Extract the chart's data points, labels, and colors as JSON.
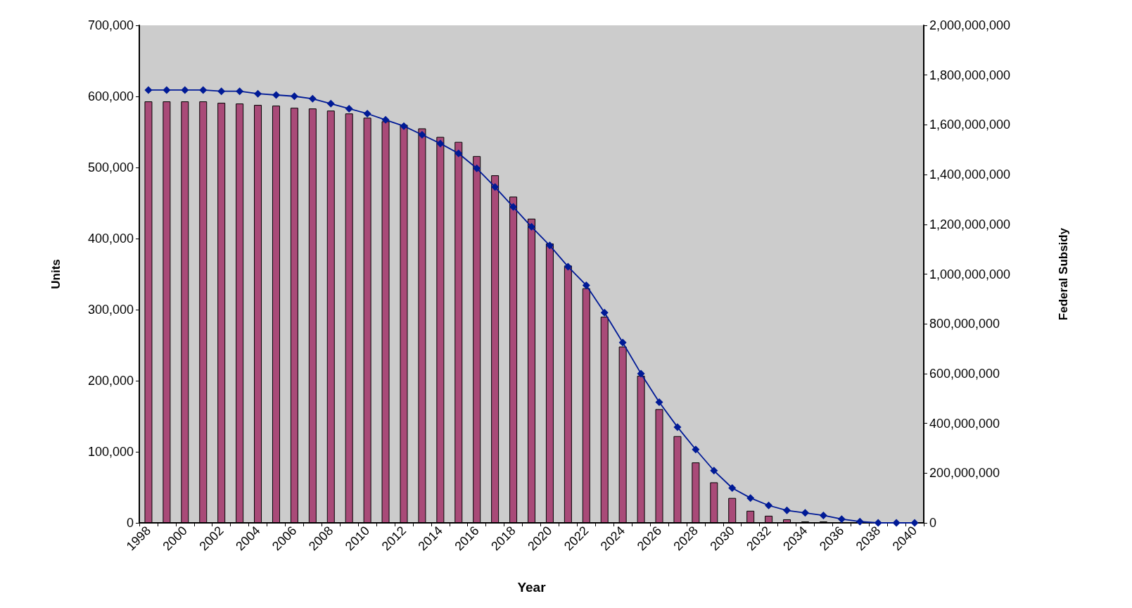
{
  "chart_data": {
    "type": "bar",
    "xlabel": "Year",
    "ylabel": "Units",
    "y2label": "Federal Subsidy",
    "categories": [
      "1998",
      null,
      "2000",
      null,
      "2002",
      null,
      "2004",
      null,
      "2006",
      null,
      "2008",
      null,
      "2010",
      null,
      "2012",
      null,
      "2014",
      null,
      "2016",
      null,
      "2018",
      null,
      "2020",
      null,
      "2022",
      null,
      "2024",
      null,
      "2026",
      null,
      "2028",
      null,
      "2030",
      null,
      "2032",
      null,
      "2034",
      null,
      "2036",
      null,
      "2038",
      null,
      "2040"
    ],
    "series": [
      {
        "color": "#a94a78",
        "values": [
          593000,
          593000,
          593000,
          593000,
          591000,
          590000,
          588000,
          587000,
          584000,
          583000,
          580000,
          576000,
          570000,
          565000,
          560000,
          555000,
          543000,
          536000,
          516000,
          489000,
          459000,
          428000,
          393000,
          362000,
          330000,
          290000,
          248000,
          207000,
          160000,
          122000,
          85000,
          57000,
          35000,
          17000,
          10000,
          5000,
          2000,
          2000,
          0,
          0,
          0,
          0,
          0
        ]
      },
      {
        "type": "line",
        "axis": "y2",
        "color": "#001a96",
        "marker": "diamond",
        "values": [
          1740000000,
          1740000000,
          1740000000,
          1740000000,
          1735000000,
          1735000000,
          1725000000,
          1720000000,
          1715000000,
          1705000000,
          1685000000,
          1665000000,
          1645000000,
          1620000000,
          1595000000,
          1560000000,
          1525000000,
          1485000000,
          1425000000,
          1350000000,
          1270000000,
          1190000000,
          1115000000,
          1030000000,
          955000000,
          845000000,
          725000000,
          600000000,
          485000000,
          385000000,
          295000000,
          210000000,
          140000000,
          100000000,
          70000000,
          50000000,
          40000000,
          30000000,
          15000000,
          5000000,
          0,
          0,
          0
        ]
      }
    ],
    "ylim": [
      0,
      700000
    ],
    "yticks": [
      0,
      {
        "value": 100000,
        "label": "100,000"
      },
      {
        "value": 200000,
        "label": "200,000"
      },
      {
        "value": 300000,
        "label": "300,000"
      },
      {
        "value": 400000,
        "label": "400,000"
      },
      {
        "value": 500000,
        "label": "500,000"
      },
      {
        "value": 600000,
        "label": "600,000"
      },
      {
        "value": 700000,
        "label": "700,000"
      }
    ],
    "y2lim": [
      0,
      2000000000
    ],
    "y2ticks": [
      0,
      {
        "value": 200000000,
        "label": "200,000,000"
      },
      {
        "value": 400000000,
        "label": "400,000,000"
      },
      {
        "value": 600000000,
        "label": "600,000,000"
      },
      {
        "value": 800000000,
        "label": "800,000,000"
      },
      {
        "value": 1000000000,
        "label": "1,000,000,000"
      },
      {
        "value": 1200000000,
        "label": "1,200,000,000"
      },
      {
        "value": 1400000000,
        "label": "1,400,000,000"
      },
      {
        "value": 1600000000,
        "label": "1,600,000,000"
      },
      {
        "value": 1800000000,
        "label": "1,800,000,000"
      },
      {
        "value": 2000000000,
        "label": "2,000,000,000"
      }
    ],
    "grid": false
  }
}
